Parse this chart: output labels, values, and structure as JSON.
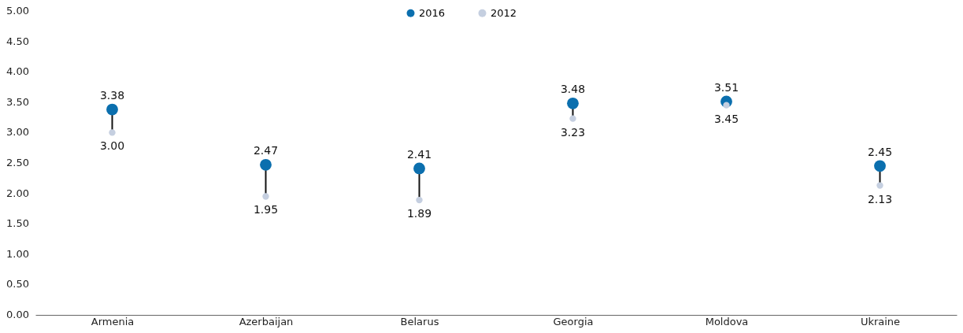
{
  "chart_data": {
    "type": "scatter",
    "categories": [
      "Armenia",
      "Azerbaijan",
      "Belarus",
      "Georgia",
      "Moldova",
      "Ukraine"
    ],
    "series": [
      {
        "name": "2016",
        "color": "#0b6fae",
        "values": [
          3.38,
          2.47,
          2.41,
          3.48,
          3.51,
          2.45
        ],
        "value_labels": [
          "3.38",
          "2.47",
          "2.41",
          "3.48",
          "3.51",
          "2.45"
        ]
      },
      {
        "name": "2012",
        "color": "#c5cfe0",
        "values": [
          3.0,
          1.95,
          1.89,
          3.23,
          3.45,
          2.13
        ],
        "value_labels": [
          "3.00",
          "1.95",
          "1.89",
          "3.23",
          "3.45",
          "2.13"
        ]
      }
    ],
    "ylim": [
      0,
      5
    ],
    "yticks": [
      {
        "value": 0,
        "label": "0.00"
      },
      {
        "value": 0.5,
        "label": "0.50"
      },
      {
        "value": 1,
        "label": "1.00"
      },
      {
        "value": 1.5,
        "label": "1.50"
      },
      {
        "value": 2,
        "label": "2.00"
      },
      {
        "value": 2.5,
        "label": "2.50"
      },
      {
        "value": 3,
        "label": "3.00"
      },
      {
        "value": 3.5,
        "label": "3.50"
      },
      {
        "value": 4,
        "label": "4.00"
      },
      {
        "value": 4.5,
        "label": "4.50"
      },
      {
        "value": 5,
        "label": "5.00"
      }
    ],
    "grid": false,
    "legend": "top",
    "marker": "circle"
  }
}
